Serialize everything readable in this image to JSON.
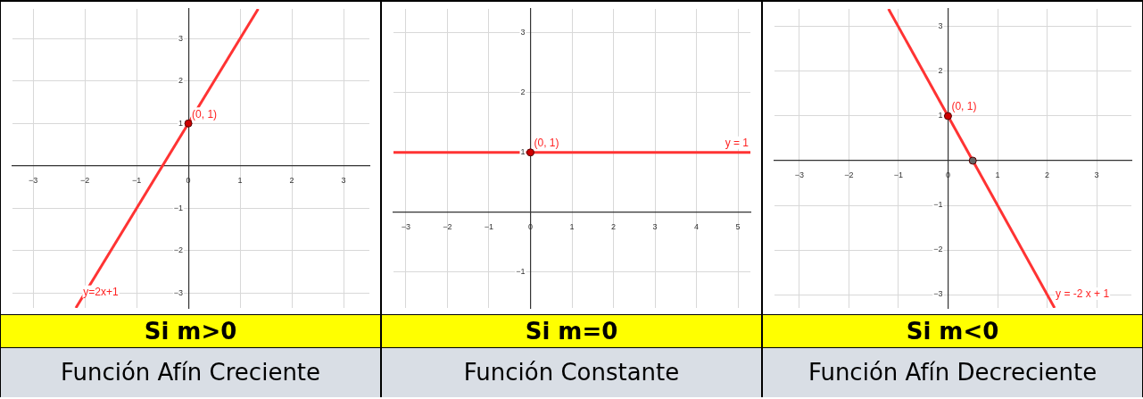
{
  "chart_data": [
    {
      "type": "line",
      "title": "Si m>0",
      "subtitle": "Función Afín Creciente",
      "xlim": [
        -3.4,
        3.5
      ],
      "ylim": [
        -3.35,
        3.7
      ],
      "xticks": [
        -3,
        -2,
        -1,
        0,
        1,
        2,
        3
      ],
      "yticks": [
        -3,
        -2,
        -1,
        1,
        2,
        3
      ],
      "grid": true,
      "legend": false,
      "series": [
        {
          "type": "line",
          "color": "#ff3333",
          "x": [
            -2.175,
            1.35
          ],
          "values": [
            -3.35,
            3.7
          ],
          "marker": "none"
        },
        {
          "type": "scatter",
          "color": "#cc0000",
          "x": [
            0
          ],
          "values": [
            1
          ],
          "marker": "circle"
        }
      ],
      "annotations": [
        {
          "text": "(0, 1)",
          "x": 0,
          "y": 1
        },
        {
          "text": "y=2x+1",
          "x": -2.1,
          "y": -3.2
        }
      ]
    },
    {
      "type": "line",
      "title": "Si m=0",
      "subtitle": "Función Constante",
      "xlim": [
        -3.3,
        5.3
      ],
      "ylim": [
        -1.6,
        3.4
      ],
      "xticks": [
        -3,
        -2,
        -1,
        0,
        1,
        2,
        3,
        4,
        5
      ],
      "yticks": [
        -1,
        1,
        2,
        3
      ],
      "grid": true,
      "legend": false,
      "series": [
        {
          "type": "line",
          "color": "#ff3333",
          "x": [
            -3.3,
            5.3
          ],
          "values": [
            1,
            1
          ],
          "marker": "none"
        },
        {
          "type": "scatter",
          "color": "#cc0000",
          "x": [
            0
          ],
          "values": [
            1
          ],
          "marker": "circle"
        }
      ],
      "annotations": [
        {
          "text": "(0, 1)",
          "x": 0,
          "y": 1
        },
        {
          "text": "y = 1",
          "x": 4.7,
          "y": 1
        }
      ]
    },
    {
      "type": "line",
      "title": "Si m<0",
      "subtitle": "Función Afín Decreciente",
      "xlim": [
        -3.5,
        3.7
      ],
      "ylim": [
        -3.3,
        3.4
      ],
      "xticks": [
        -3,
        -2,
        -1,
        0,
        1,
        2,
        3
      ],
      "yticks": [
        -3,
        -2,
        -1,
        1,
        2,
        3
      ],
      "grid": true,
      "legend": false,
      "series": [
        {
          "type": "line",
          "color": "#ff3333",
          "x": [
            -1.2,
            2.15
          ],
          "values": [
            3.4,
            -3.3
          ],
          "marker": "none"
        },
        {
          "type": "scatter",
          "color": "#cc0000",
          "x": [
            0
          ],
          "values": [
            1
          ],
          "marker": "circle"
        },
        {
          "type": "scatter",
          "color": "#666666",
          "x": [
            0.5
          ],
          "values": [
            0
          ],
          "marker": "circle"
        }
      ],
      "annotations": [
        {
          "text": "(0, 1)",
          "x": 0,
          "y": 1
        },
        {
          "text": "y = -2 x + 1",
          "x": 2.1,
          "y": -3.2
        }
      ]
    }
  ]
}
